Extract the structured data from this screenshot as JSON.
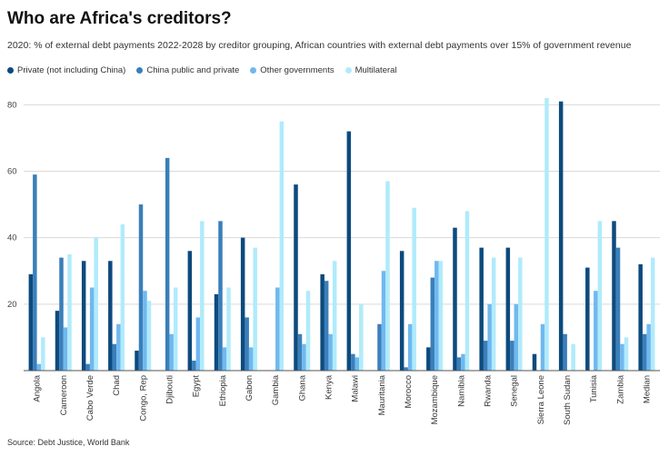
{
  "title": "Who are Africa's creditors?",
  "subtitle": "2020: % of external debt payments 2022-2028 by creditor grouping, African countries with external debt payments over 15% of government revenue",
  "source": "Source: Debt Justice, World Bank",
  "legend": [
    {
      "label": "Private (not including China)",
      "color": "#0d4a7d"
    },
    {
      "label": "China public and private",
      "color": "#3a7fba"
    },
    {
      "label": "Other governments",
      "color": "#70b8ef"
    },
    {
      "label": "Multilateral",
      "color": "#b0ebfb"
    }
  ],
  "chart_data": {
    "type": "bar",
    "title": "Who are Africa's creditors?",
    "xlabel": "",
    "ylabel": "",
    "ylim": [
      0,
      82
    ],
    "yticks": [
      20,
      40,
      60,
      80
    ],
    "categories": [
      "Angola",
      "Cameroon",
      "Cabo Verde",
      "Chad",
      "Congo, Rep",
      "Djibouti",
      "Egypt",
      "Ethiopia",
      "Gabon",
      "Gambia",
      "Ghana",
      "Kenya",
      "Malawi",
      "Mauritania",
      "Morocco",
      "Mozambique",
      "Namibia",
      "Rwanda",
      "Senegal",
      "Sierra Leone",
      "South Sudan",
      "Tunisia",
      "Zambia",
      "Median"
    ],
    "series": [
      {
        "name": "Private (not including China)",
        "color": "#0d4a7d",
        "values": [
          29,
          18,
          33,
          33,
          6,
          0,
          36,
          23,
          40,
          0,
          56,
          29,
          72,
          0,
          36,
          7,
          43,
          37,
          37,
          5,
          81,
          31,
          45,
          32
        ]
      },
      {
        "name": "China public and private",
        "color": "#3a7fba",
        "values": [
          59,
          34,
          2,
          8,
          50,
          64,
          3,
          45,
          16,
          0,
          11,
          27,
          5,
          14,
          1,
          28,
          4,
          9,
          9,
          0,
          11,
          0,
          37,
          11
        ]
      },
      {
        "name": "Other governments",
        "color": "#70b8ef",
        "values": [
          2,
          13,
          25,
          14,
          24,
          11,
          16,
          7,
          7,
          25,
          8,
          11,
          4,
          30,
          14,
          33,
          5,
          20,
          20,
          14,
          0,
          24,
          8,
          14
        ]
      },
      {
        "name": "Multilateral",
        "color": "#b0ebfb",
        "values": [
          10,
          35,
          40,
          44,
          21,
          25,
          45,
          25,
          37,
          75,
          24,
          33,
          20,
          57,
          49,
          33,
          48,
          34,
          34,
          82,
          8,
          45,
          10,
          34
        ]
      }
    ]
  }
}
